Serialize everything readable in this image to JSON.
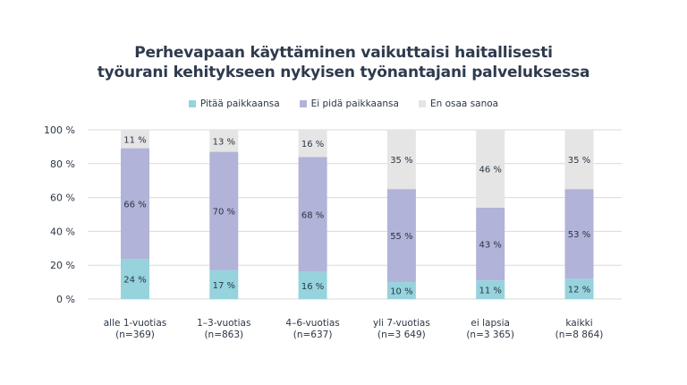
{
  "chart_data": {
    "type": "bar",
    "stacked": true,
    "title": "Perhevapaan käyttäminen vaikuttaisi haitallisesti\ntyöurani kehitykseen nykyisen työnantajani palveluksessa",
    "title_lines": [
      "Perhevapaan käyttäminen vaikuttaisi haitallisesti",
      "työurani kehitykseen nykyisen työnantajani palveluksessa"
    ],
    "categories": [
      [
        "alle 1-vuotias",
        "(n=369)"
      ],
      [
        "1–3-vuotias",
        "(n=863)"
      ],
      [
        "4–6-vuotias",
        "(n=637)"
      ],
      [
        "yli 7-vuotias",
        "(n=3 649)"
      ],
      [
        "ei lapsia",
        "(n=3 365)"
      ],
      [
        "kaikki",
        "(n=8 864)"
      ]
    ],
    "series": [
      {
        "name": "Pitää paikkaansa",
        "color": "#96d3dc",
        "values": [
          24,
          17,
          16,
          10,
          11,
          12
        ]
      },
      {
        "name": "Ei pidä paikkaansa",
        "color": "#b1b3d9",
        "values": [
          66,
          70,
          68,
          55,
          43,
          53
        ]
      },
      {
        "name": "En osaa sanoa",
        "color": "#e5e5e5",
        "values": [
          11,
          13,
          16,
          35,
          46,
          35
        ]
      }
    ],
    "value_suffix": " %",
    "ylim": [
      0,
      100
    ],
    "yticks": [
      "0 %",
      "20 %",
      "40 %",
      "60 %",
      "80 %",
      "100 %"
    ],
    "grid": true,
    "legend_position": "top"
  }
}
